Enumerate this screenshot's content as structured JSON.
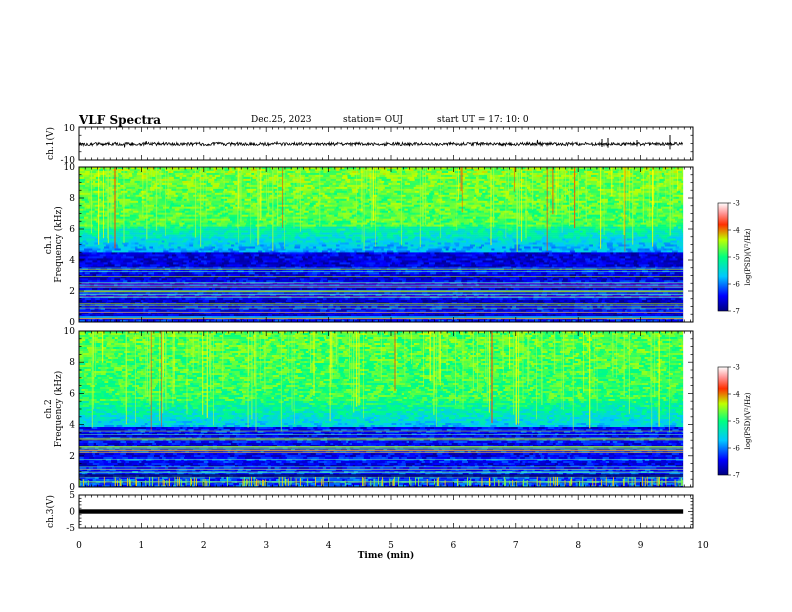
{
  "header": {
    "title": "VLF Spectra",
    "date": "Dec.25, 2023",
    "station": "station= OUJ",
    "start": "start  UT =   17: 10: 0"
  },
  "chart_data": [
    {
      "type": "line",
      "name": "ch1-waveform",
      "ylabel": "ch.1(V)",
      "ylim": [
        -10,
        10
      ],
      "yticks": [
        "10",
        "-10"
      ],
      "x": [
        0,
        10
      ],
      "description_level": 0
    },
    {
      "type": "heatmap",
      "name": "ch1-spectrogram",
      "ylabel": "ch.1\nFrequency (kHz)",
      "ylabel_top": "ch.1",
      "ylabel_bottom": "Frequency (kHz)",
      "ylim": [
        0,
        10
      ],
      "yticks": [
        "0",
        "2",
        "4",
        "6",
        "8",
        "10"
      ],
      "xlim": [
        0,
        10
      ],
      "colorbar": {
        "label": "log(PSD)(V²/Hz)",
        "range": [
          -7,
          -3
        ],
        "ticks": [
          "-3",
          "-4",
          "-5",
          "-6",
          "-7"
        ]
      }
    },
    {
      "type": "heatmap",
      "name": "ch2-spectrogram",
      "ylabel": "ch.2\nFrequency (kHz)",
      "ylabel_top": "ch.2",
      "ylabel_bottom": "Frequency (kHz)",
      "ylim": [
        0,
        10
      ],
      "yticks": [
        "0",
        "2",
        "4",
        "6",
        "8",
        "10"
      ],
      "xlim": [
        0,
        10
      ],
      "colorbar": {
        "label": "log(PSD)(V²/Hz)",
        "range": [
          -7,
          -3
        ],
        "ticks": [
          "-3",
          "-4",
          "-5",
          "-6",
          "-7"
        ]
      }
    },
    {
      "type": "line",
      "name": "ch3-waveform",
      "ylabel": "ch.3(V)",
      "ylim": [
        -5,
        5
      ],
      "yticks": [
        "5",
        "0",
        "-5"
      ],
      "xlabel": "Time (min)",
      "xlim": [
        0,
        10
      ],
      "xticks": [
        "0",
        "1",
        "2",
        "3",
        "4",
        "5",
        "6",
        "7",
        "8",
        "9",
        "10"
      ]
    }
  ]
}
